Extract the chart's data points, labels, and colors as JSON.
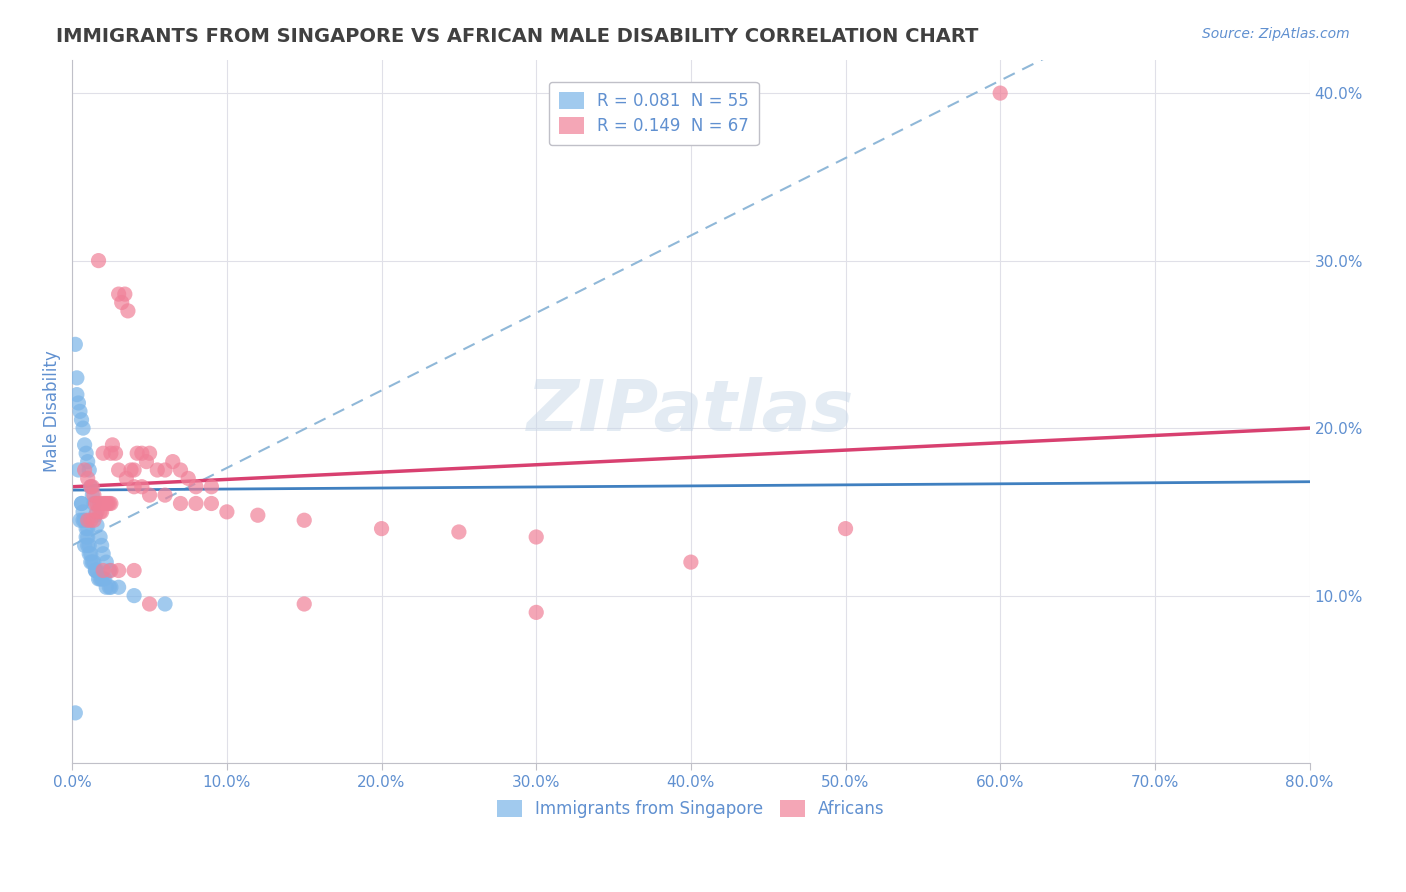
{
  "title": "IMMIGRANTS FROM SINGAPORE VS AFRICAN MALE DISABILITY CORRELATION CHART",
  "source": "Source: ZipAtlas.com",
  "xlabel": "",
  "ylabel": "Male Disability",
  "xlim": [
    0.0,
    0.8
  ],
  "ylim": [
    0.0,
    0.42
  ],
  "xticks": [
    0.0,
    0.1,
    0.2,
    0.3,
    0.4,
    0.5,
    0.6,
    0.7,
    0.8
  ],
  "yticks": [
    0.0,
    0.1,
    0.2,
    0.3,
    0.4
  ],
  "ytick_labels": [
    "",
    "10.0%",
    "20.0%",
    "30.0%",
    "40.0%"
  ],
  "xtick_labels": [
    "0.0%",
    "",
    "",
    "",
    "",
    "",
    "",
    "",
    "80.0%"
  ],
  "legend_entries": [
    {
      "label": "R = 0.081  N = 55",
      "color": "#a8c8f0"
    },
    {
      "label": "R = 0.149  N = 67",
      "color": "#f0a0b8"
    }
  ],
  "series1_label": "Immigrants from Singapore",
  "series2_label": "Africans",
  "series1_color": "#7ab4e8",
  "series2_color": "#f08098",
  "series1_R": 0.081,
  "series1_N": 55,
  "series2_R": 0.149,
  "series2_N": 67,
  "watermark": "ZIPatlas",
  "background_color": "#ffffff",
  "grid_color": "#e0e0e8",
  "title_color": "#404040",
  "axis_color": "#6090d0",
  "series1_x": [
    0.004,
    0.005,
    0.006,
    0.006,
    0.007,
    0.007,
    0.008,
    0.008,
    0.009,
    0.009,
    0.01,
    0.01,
    0.01,
    0.011,
    0.011,
    0.012,
    0.012,
    0.013,
    0.014,
    0.015,
    0.015,
    0.016,
    0.017,
    0.018,
    0.019,
    0.02,
    0.021,
    0.022,
    0.024,
    0.025,
    0.002,
    0.003,
    0.003,
    0.004,
    0.005,
    0.006,
    0.007,
    0.008,
    0.009,
    0.01,
    0.011,
    0.012,
    0.013,
    0.014,
    0.015,
    0.016,
    0.018,
    0.019,
    0.02,
    0.022,
    0.024,
    0.03,
    0.04,
    0.06,
    0.002
  ],
  "series1_y": [
    0.175,
    0.145,
    0.155,
    0.155,
    0.15,
    0.145,
    0.145,
    0.13,
    0.14,
    0.135,
    0.14,
    0.135,
    0.13,
    0.13,
    0.125,
    0.125,
    0.12,
    0.12,
    0.12,
    0.115,
    0.115,
    0.115,
    0.11,
    0.11,
    0.11,
    0.11,
    0.11,
    0.105,
    0.105,
    0.105,
    0.25,
    0.23,
    0.22,
    0.215,
    0.21,
    0.205,
    0.2,
    0.19,
    0.185,
    0.18,
    0.175,
    0.165,
    0.16,
    0.155,
    0.148,
    0.142,
    0.135,
    0.13,
    0.125,
    0.12,
    0.115,
    0.105,
    0.1,
    0.095,
    0.03
  ],
  "series2_x": [
    0.008,
    0.01,
    0.012,
    0.013,
    0.014,
    0.015,
    0.016,
    0.017,
    0.018,
    0.019,
    0.02,
    0.021,
    0.022,
    0.023,
    0.024,
    0.025,
    0.026,
    0.028,
    0.03,
    0.032,
    0.034,
    0.036,
    0.038,
    0.04,
    0.042,
    0.045,
    0.048,
    0.05,
    0.055,
    0.06,
    0.065,
    0.07,
    0.075,
    0.08,
    0.09,
    0.01,
    0.012,
    0.014,
    0.016,
    0.018,
    0.02,
    0.025,
    0.03,
    0.035,
    0.04,
    0.045,
    0.05,
    0.06,
    0.07,
    0.08,
    0.09,
    0.1,
    0.12,
    0.15,
    0.2,
    0.25,
    0.3,
    0.02,
    0.025,
    0.03,
    0.04,
    0.05,
    0.15,
    0.3,
    0.4,
    0.5,
    0.6
  ],
  "series2_y": [
    0.175,
    0.17,
    0.165,
    0.165,
    0.16,
    0.155,
    0.155,
    0.3,
    0.155,
    0.15,
    0.155,
    0.155,
    0.155,
    0.155,
    0.155,
    0.155,
    0.19,
    0.185,
    0.28,
    0.275,
    0.28,
    0.27,
    0.175,
    0.175,
    0.185,
    0.185,
    0.18,
    0.185,
    0.175,
    0.175,
    0.18,
    0.175,
    0.17,
    0.165,
    0.165,
    0.145,
    0.145,
    0.145,
    0.15,
    0.15,
    0.185,
    0.185,
    0.175,
    0.17,
    0.165,
    0.165,
    0.16,
    0.16,
    0.155,
    0.155,
    0.155,
    0.15,
    0.148,
    0.145,
    0.14,
    0.138,
    0.135,
    0.115,
    0.115,
    0.115,
    0.115,
    0.095,
    0.095,
    0.09,
    0.12,
    0.14,
    0.4
  ]
}
